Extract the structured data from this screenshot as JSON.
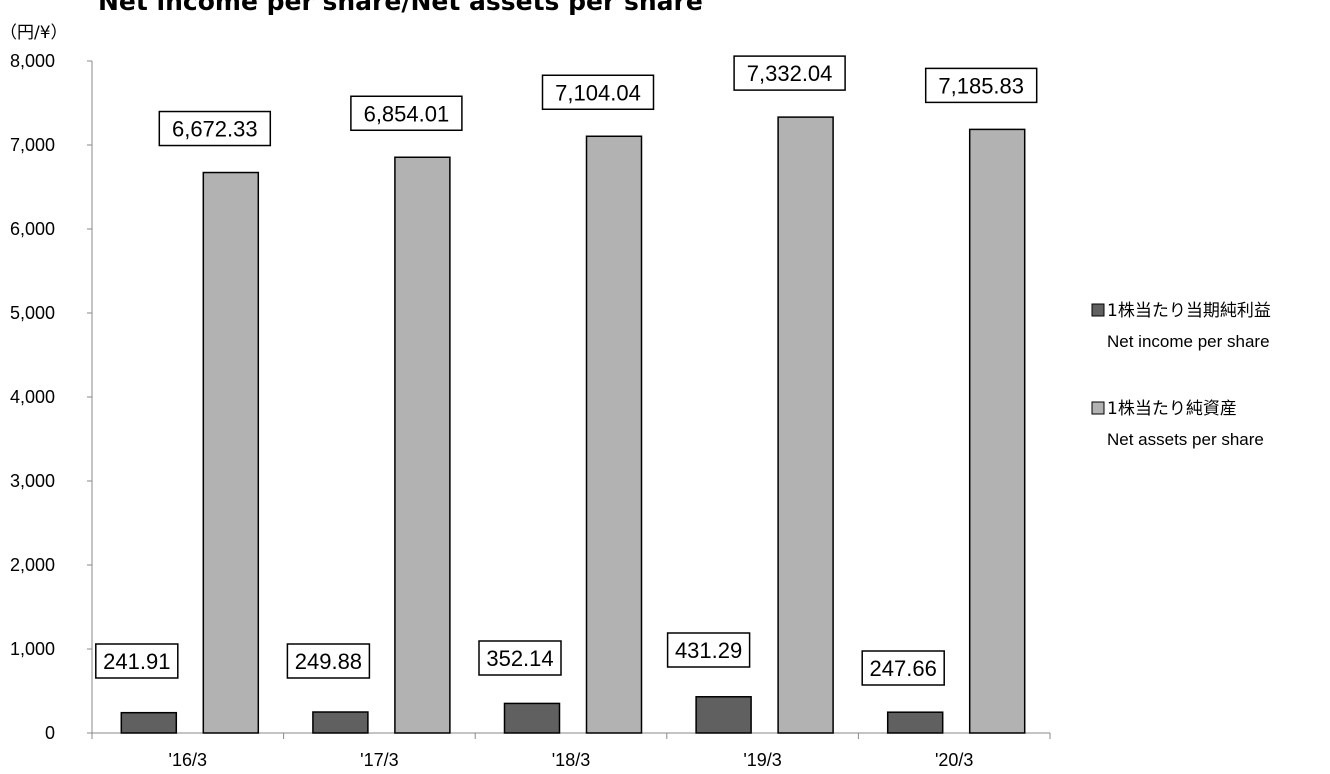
{
  "chart_data": {
    "type": "bar",
    "title": "Net income per share/Net assets per share",
    "unit_label": "（円/¥）",
    "categories": [
      "'16/3",
      "'17/3",
      "'18/3",
      "'19/3",
      "'20/3"
    ],
    "ylim": [
      0,
      8000
    ],
    "yticks": [
      0,
      1000,
      2000,
      3000,
      4000,
      5000,
      6000,
      7000,
      8000
    ],
    "ytick_labels": [
      "0",
      "1,000",
      "2,000",
      "3,000",
      "4,000",
      "5,000",
      "6,000",
      "7,000",
      "8,000"
    ],
    "grid": false,
    "legend_position": "right",
    "series": [
      {
        "name": "1株当たり当期純利益",
        "name_en": "Net income per share",
        "color": "#606060",
        "values": [
          241.91,
          249.88,
          352.14,
          431.29,
          247.66
        ],
        "labels": [
          "241.91",
          "249.88",
          "352.14",
          "431.29",
          "247.66"
        ]
      },
      {
        "name": "1株当たり純資産",
        "name_en": "Net assets per share",
        "color": "#b2b2b2",
        "values": [
          6672.33,
          6854.01,
          7104.04,
          7332.04,
          7185.83
        ],
        "labels": [
          "6,672.33",
          "6,854.01",
          "7,104.04",
          "7,332.04",
          "7,185.83"
        ]
      }
    ]
  }
}
